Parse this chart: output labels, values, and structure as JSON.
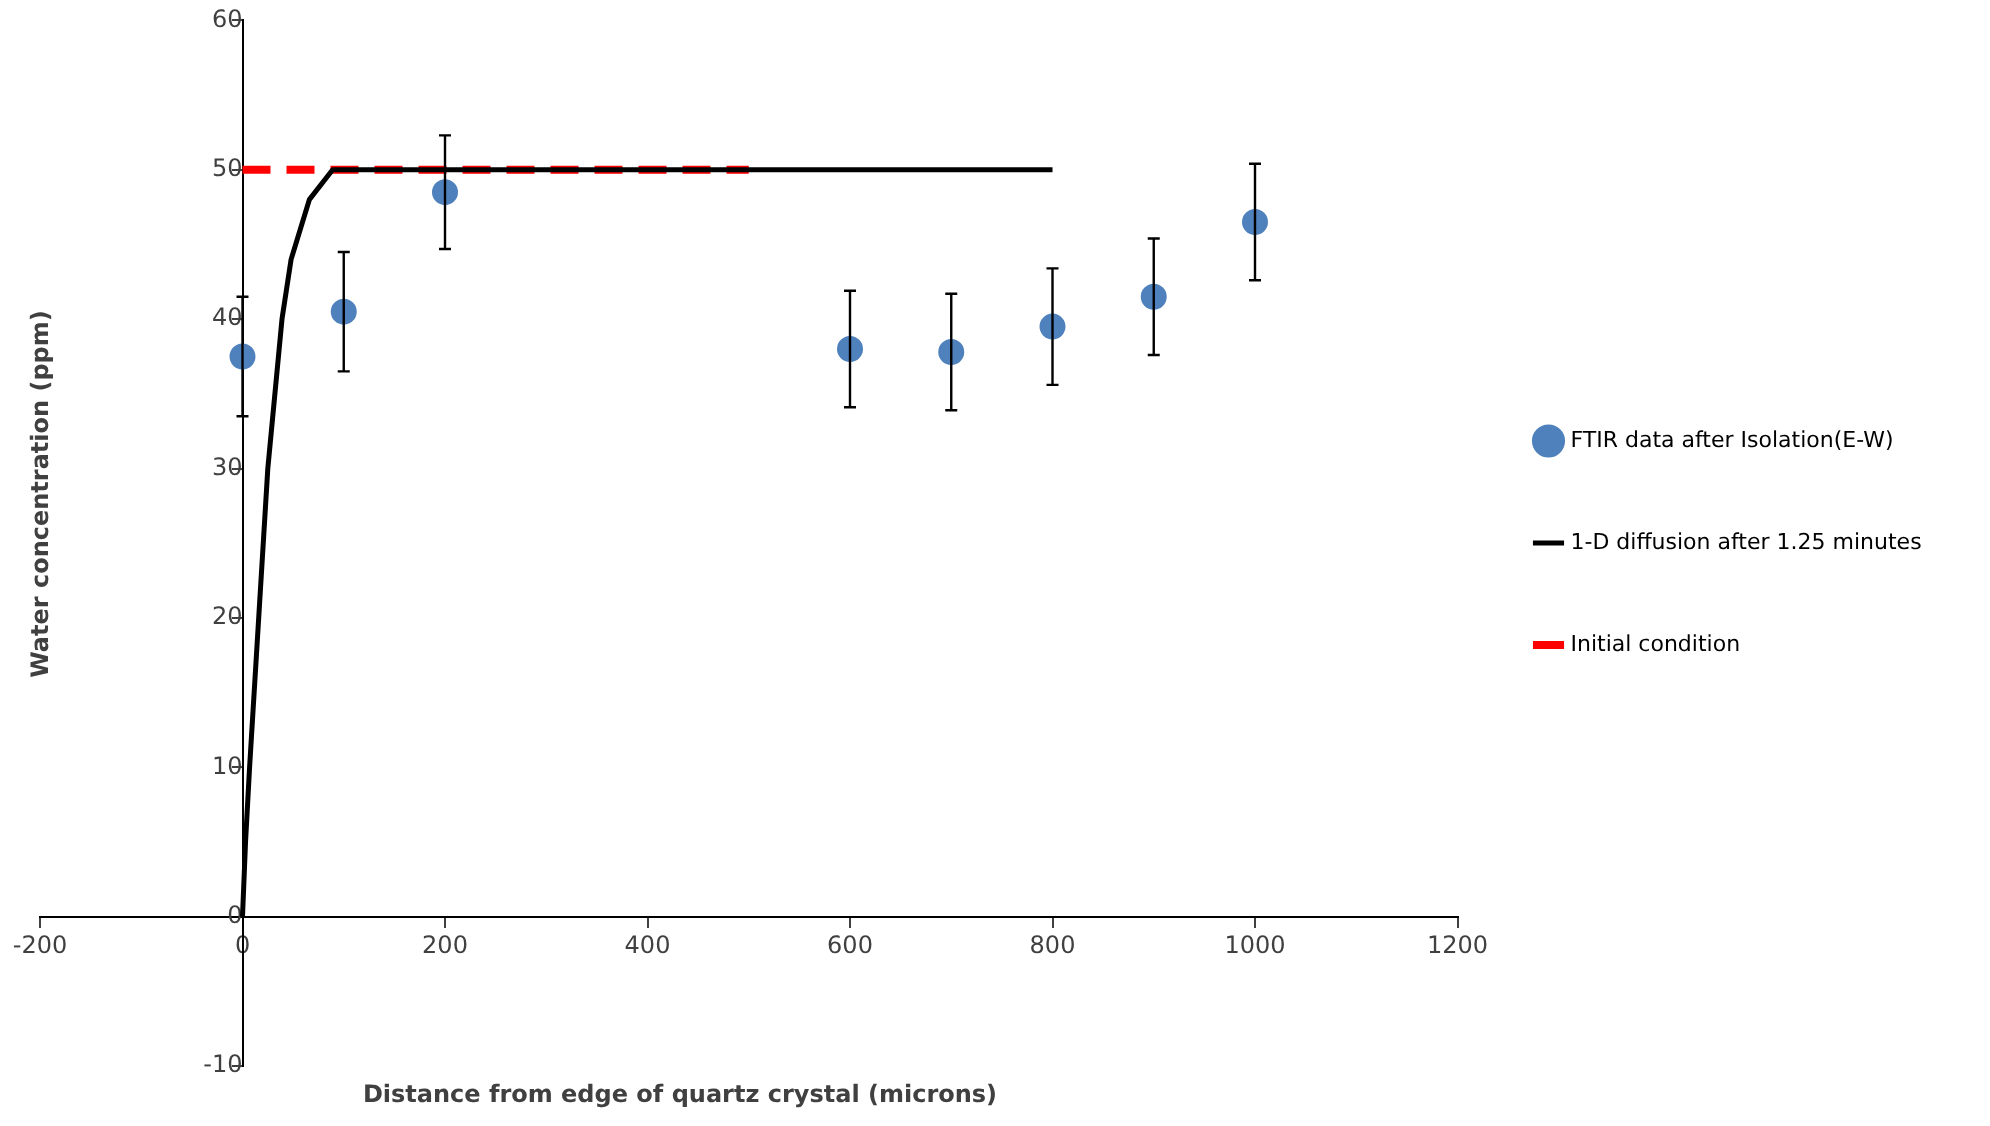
{
  "chart_data": {
    "type": "scatter",
    "xlabel": "Distance from edge of quartz crystal (microns)",
    "ylabel": "Water concentration (ppm)",
    "xlim": [
      -200,
      1200
    ],
    "xticks": [
      -200,
      0,
      200,
      400,
      600,
      800,
      1000,
      1200
    ],
    "ylim": [
      -10,
      60
    ],
    "yticks": [
      -10,
      0,
      10,
      20,
      30,
      40,
      50,
      60
    ],
    "grid": false,
    "legend": "right",
    "series": [
      {
        "name": "FTIR data after Isolation(E-W)",
        "type": "scatter",
        "marker": "circle",
        "color": "#4f81bd",
        "x": [
          0,
          100,
          200,
          600,
          700,
          800,
          900,
          1000
        ],
        "values": [
          37.5,
          40.5,
          48.5,
          38,
          37.8,
          39.5,
          41.5,
          46.5
        ],
        "errors": [
          4,
          4,
          3.8,
          3.9,
          3.9,
          3.9,
          3.9,
          3.9
        ]
      },
      {
        "name": "1-D diffusion after 1.25 minutes",
        "type": "line",
        "marker": "none",
        "color": "#000000",
        "line_style": "solid",
        "x": [
          0,
          3,
          7,
          16,
          25,
          39,
          48,
          66,
          89,
          100,
          800
        ],
        "values": [
          0,
          5,
          10,
          20,
          30,
          40,
          44,
          48,
          50,
          50,
          50
        ]
      },
      {
        "name": "Initial condition",
        "type": "line",
        "marker": "none",
        "color": "#ff0000",
        "line_style": "dashed",
        "x": [
          0,
          500
        ],
        "values": [
          50,
          50
        ]
      }
    ]
  }
}
